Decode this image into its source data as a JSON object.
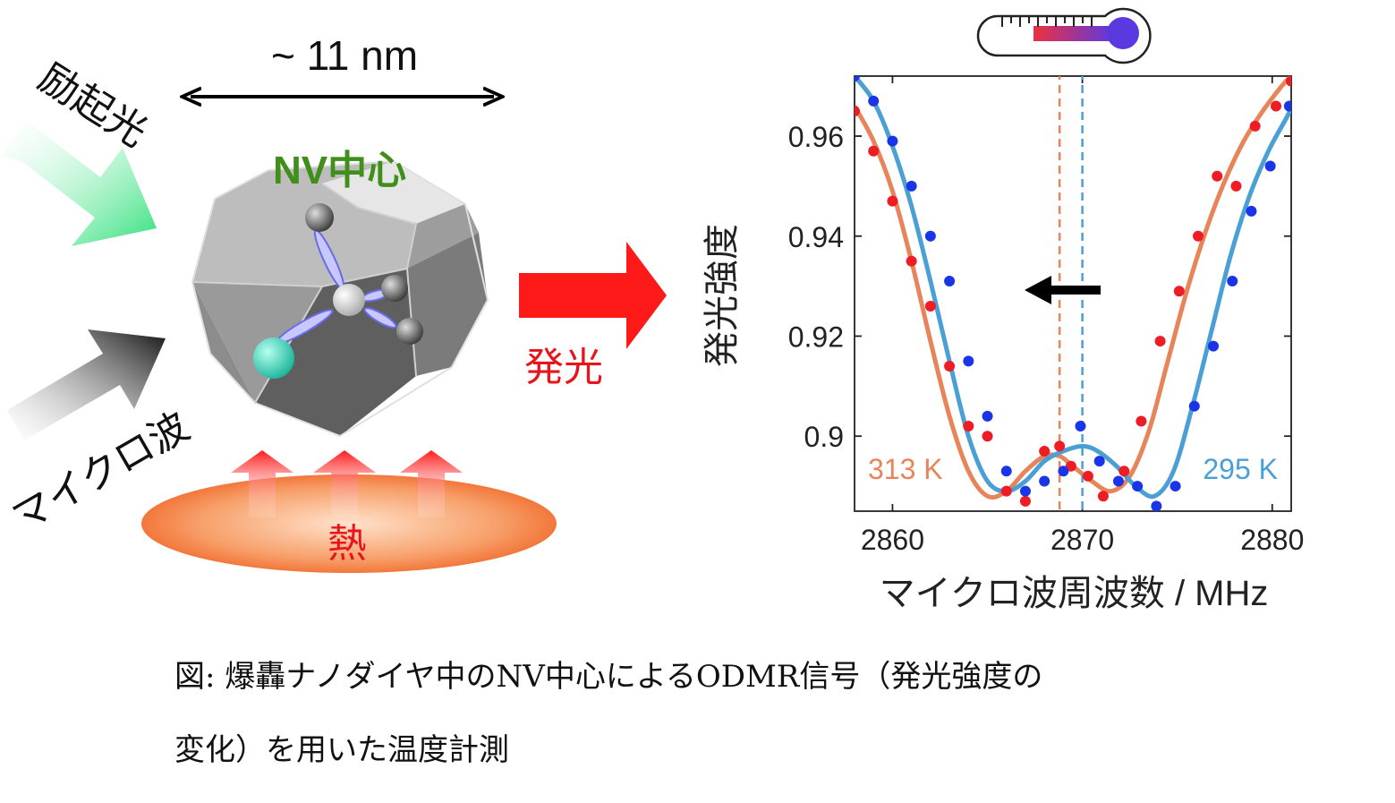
{
  "left_diagram": {
    "size_label": "~ 11 nm",
    "excitation_label": "励起光",
    "nv_label": "NV中心",
    "microwave_label": "マイクロ波",
    "emission_label": "発光",
    "heat_label": "熱",
    "colors": {
      "excitation_arrow": "#3ee080",
      "microwave_arrow": "#222222",
      "emission": "#ff1a1a",
      "nv_label": "#3f8f1a",
      "heat": "#f26a2a"
    }
  },
  "caption": {
    "line1": "図: 爆轟ナノダイヤ中のNV中心によるODMR信号（発光強度の",
    "line2": "変化）を用いた温度計測"
  },
  "chart_data": {
    "type": "line",
    "title": "",
    "xlabel": "マイクロ波周波数 / MHz",
    "ylabel": "発光強度",
    "xlim": [
      2858,
      2881
    ],
    "ylim": [
      0.885,
      0.972
    ],
    "xticks": [
      2860,
      2870,
      2880
    ],
    "xtick_labels": [
      "2860",
      "2870",
      "2880"
    ],
    "yticks": [
      0.9,
      0.92,
      0.94,
      0.96
    ],
    "ytick_labels": [
      "0.9",
      "0.92",
      "0.94",
      "0.96"
    ],
    "grid": false,
    "series": [
      {
        "name": "313 K",
        "color": "#e8845a",
        "point_color": "#ee1c24",
        "center": 2868.8,
        "dashed_marker": 2868.8,
        "curve": {
          "x": [
            2858,
            2859,
            2860,
            2861,
            2862,
            2863,
            2864,
            2865,
            2866,
            2867,
            2868,
            2868.8,
            2869.5,
            2870.5,
            2871.5,
            2872.5,
            2873.5,
            2874.5,
            2875.5,
            2876.5,
            2877.5,
            2878.5,
            2879.5,
            2880.5,
            2881
          ],
          "y": [
            0.966,
            0.959,
            0.949,
            0.935,
            0.919,
            0.904,
            0.893,
            0.888,
            0.889,
            0.893,
            0.896,
            0.896,
            0.894,
            0.891,
            0.889,
            0.892,
            0.901,
            0.915,
            0.929,
            0.941,
            0.951,
            0.959,
            0.965,
            0.97,
            0.972
          ]
        },
        "points": {
          "x": [
            2858,
            2859,
            2860,
            2861,
            2862,
            2863,
            2864,
            2865,
            2866,
            2867,
            2868,
            2868.8,
            2869.4,
            2870.3,
            2871.1,
            2872.2,
            2873.1,
            2874.1,
            2875.1,
            2876.1,
            2877.1,
            2878.1,
            2879.1,
            2880.2,
            2881
          ],
          "y": [
            0.965,
            0.957,
            0.947,
            0.935,
            0.926,
            0.914,
            0.902,
            0.9,
            0.889,
            0.887,
            0.897,
            0.898,
            0.894,
            0.892,
            0.888,
            0.893,
            0.903,
            0.919,
            0.929,
            0.94,
            0.952,
            0.95,
            0.962,
            0.966,
            0.971
          ]
        }
      },
      {
        "name": "295 K",
        "color": "#4a9fd5",
        "point_color": "#1a35e8",
        "center": 2870.0,
        "dashed_marker": 2870.0,
        "curve": {
          "x": [
            2858,
            2859,
            2860,
            2861,
            2862,
            2863,
            2864,
            2865,
            2866,
            2867,
            2868,
            2869,
            2870,
            2870.8,
            2871.8,
            2872.8,
            2873.8,
            2874.8,
            2875.8,
            2876.8,
            2877.8,
            2878.8,
            2879.8,
            2880.8,
            2881
          ],
          "y": [
            0.972,
            0.967,
            0.958,
            0.946,
            0.931,
            0.915,
            0.9,
            0.891,
            0.889,
            0.891,
            0.895,
            0.897,
            0.898,
            0.897,
            0.894,
            0.89,
            0.888,
            0.893,
            0.906,
            0.921,
            0.936,
            0.948,
            0.957,
            0.964,
            0.966
          ]
        },
        "points": {
          "x": [
            2858,
            2859,
            2860,
            2861,
            2862,
            2863,
            2864,
            2865,
            2866,
            2867,
            2868,
            2869,
            2869.9,
            2870.9,
            2871.9,
            2872.9,
            2873.9,
            2874.9,
            2875.9,
            2876.9,
            2877.9,
            2878.9,
            2879.9,
            2880.9
          ],
          "y": [
            0.972,
            0.967,
            0.959,
            0.95,
            0.94,
            0.931,
            0.915,
            0.904,
            0.893,
            0.889,
            0.891,
            0.893,
            0.902,
            0.895,
            0.891,
            0.89,
            0.886,
            0.89,
            0.906,
            0.918,
            0.931,
            0.945,
            0.954,
            0.966
          ]
        }
      }
    ],
    "annotations": {
      "shift_arrow": "left",
      "series_label_placement": [
        "lower-left",
        "lower-right"
      ],
      "thermometer": true
    }
  }
}
